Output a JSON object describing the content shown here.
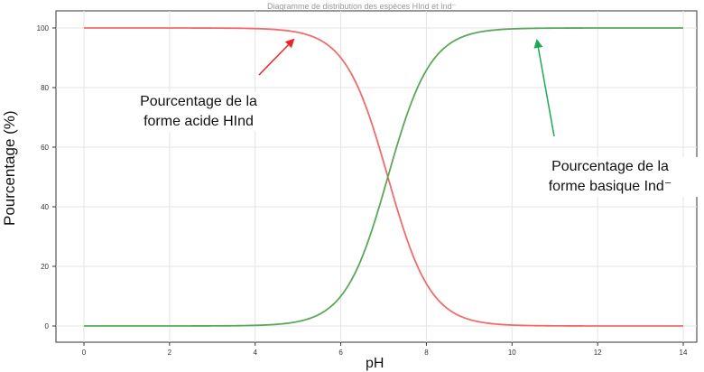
{
  "chart_data": {
    "type": "line",
    "title": "Diagramme de distribution des espèces HInd et Ind⁻",
    "xlabel": "pH",
    "ylabel": "Pourcentage (%)",
    "xlim": [
      0,
      14
    ],
    "ylim": [
      0,
      100
    ],
    "xticks": [
      "0",
      "2",
      "4",
      "6",
      "8",
      "10",
      "12",
      "14"
    ],
    "yticks": [
      "0",
      "20",
      "40",
      "60",
      "80",
      "100"
    ],
    "grid": true,
    "pKa": 7.1,
    "series": [
      {
        "name": "Pourcentage de la forme acide HInd",
        "color": "#f26b6b",
        "x": [
          0,
          1,
          2,
          3,
          4,
          4.5,
          5,
          5.5,
          6,
          6.5,
          7,
          7.1,
          7.5,
          8,
          8.5,
          9,
          9.5,
          10,
          11,
          12,
          13,
          14
        ],
        "values": [
          100,
          100,
          100,
          99.9,
          99.2,
          98.0,
          94.0,
          86.0,
          73.0,
          60.0,
          53.0,
          50.0,
          42.0,
          30.0,
          17.0,
          8.0,
          4.0,
          1.5,
          0.3,
          0.1,
          0,
          0
        ]
      },
      {
        "name": "Pourcentage de la forme basique Ind⁻",
        "color": "#5aa85a",
        "x": [
          0,
          1,
          2,
          3,
          4,
          4.5,
          5,
          5.5,
          6,
          6.5,
          7,
          7.1,
          7.5,
          8,
          8.5,
          9,
          9.5,
          10,
          11,
          12,
          13,
          14
        ],
        "values": [
          0,
          0,
          0,
          0.1,
          0.8,
          2.0,
          6.0,
          14.0,
          27.0,
          40.0,
          47.0,
          50.0,
          58.0,
          70.0,
          83.0,
          92.0,
          96.0,
          98.5,
          99.7,
          99.9,
          100,
          100
        ]
      }
    ],
    "annotations": [
      {
        "text_line1": "Pourcentage de la",
        "text_line2": "forme acide HInd",
        "arrow_color": "#ee2222"
      },
      {
        "text_line1": "Pourcentage de la",
        "text_line2": "forme basique Ind⁻",
        "arrow_color": "#1aaa55"
      }
    ]
  }
}
